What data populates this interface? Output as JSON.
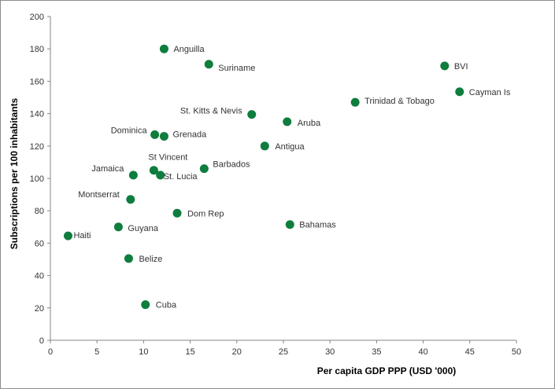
{
  "chart_data": {
    "type": "scatter",
    "title": "",
    "xlabel": "Per capita GDP PPP (USD '000)",
    "ylabel": "Subscriptions per 100 inhabitants",
    "xlim": [
      0,
      50
    ],
    "ylim": [
      0,
      200
    ],
    "xticks": [
      0,
      5,
      10,
      15,
      20,
      25,
      30,
      35,
      40,
      45,
      50
    ],
    "yticks": [
      0,
      20,
      40,
      60,
      80,
      100,
      120,
      140,
      160,
      180,
      200
    ],
    "grid": false,
    "marker_color": "#0e7d3e",
    "points": [
      {
        "label": "Anguilla",
        "x": 12.2,
        "y": 180
      },
      {
        "label": "Suriname",
        "x": 17.0,
        "y": 170.5
      },
      {
        "label": "BVI",
        "x": 42.3,
        "y": 169.5
      },
      {
        "label": "Cayman Is",
        "x": 43.9,
        "y": 153.5
      },
      {
        "label": "Trinidad & Tobago",
        "x": 32.7,
        "y": 147
      },
      {
        "label": "St. Kitts & Nevis",
        "x": 21.6,
        "y": 139.5
      },
      {
        "label": "Aruba",
        "x": 25.4,
        "y": 135
      },
      {
        "label": "Dominica",
        "x": 11.2,
        "y": 127
      },
      {
        "label": "Grenada",
        "x": 12.2,
        "y": 126
      },
      {
        "label": "Antigua",
        "x": 23.0,
        "y": 120
      },
      {
        "label": "St Vincent",
        "x": 11.1,
        "y": 105
      },
      {
        "label": "Barbados",
        "x": 16.5,
        "y": 106
      },
      {
        "label": "Jamaica",
        "x": 8.9,
        "y": 102
      },
      {
        "label": "St. Lucia",
        "x": 11.8,
        "y": 102
      },
      {
        "label": "Montserrat",
        "x": 8.6,
        "y": 87
      },
      {
        "label": "Dom Rep",
        "x": 13.6,
        "y": 78.5
      },
      {
        "label": "Bahamas",
        "x": 25.7,
        "y": 71.5
      },
      {
        "label": "Guyana",
        "x": 7.3,
        "y": 70
      },
      {
        "label": "Haiti",
        "x": 1.9,
        "y": 64.5
      },
      {
        "label": "Belize",
        "x": 8.4,
        "y": 50.5
      },
      {
        "label": "Cuba",
        "x": 10.2,
        "y": 22
      }
    ]
  }
}
